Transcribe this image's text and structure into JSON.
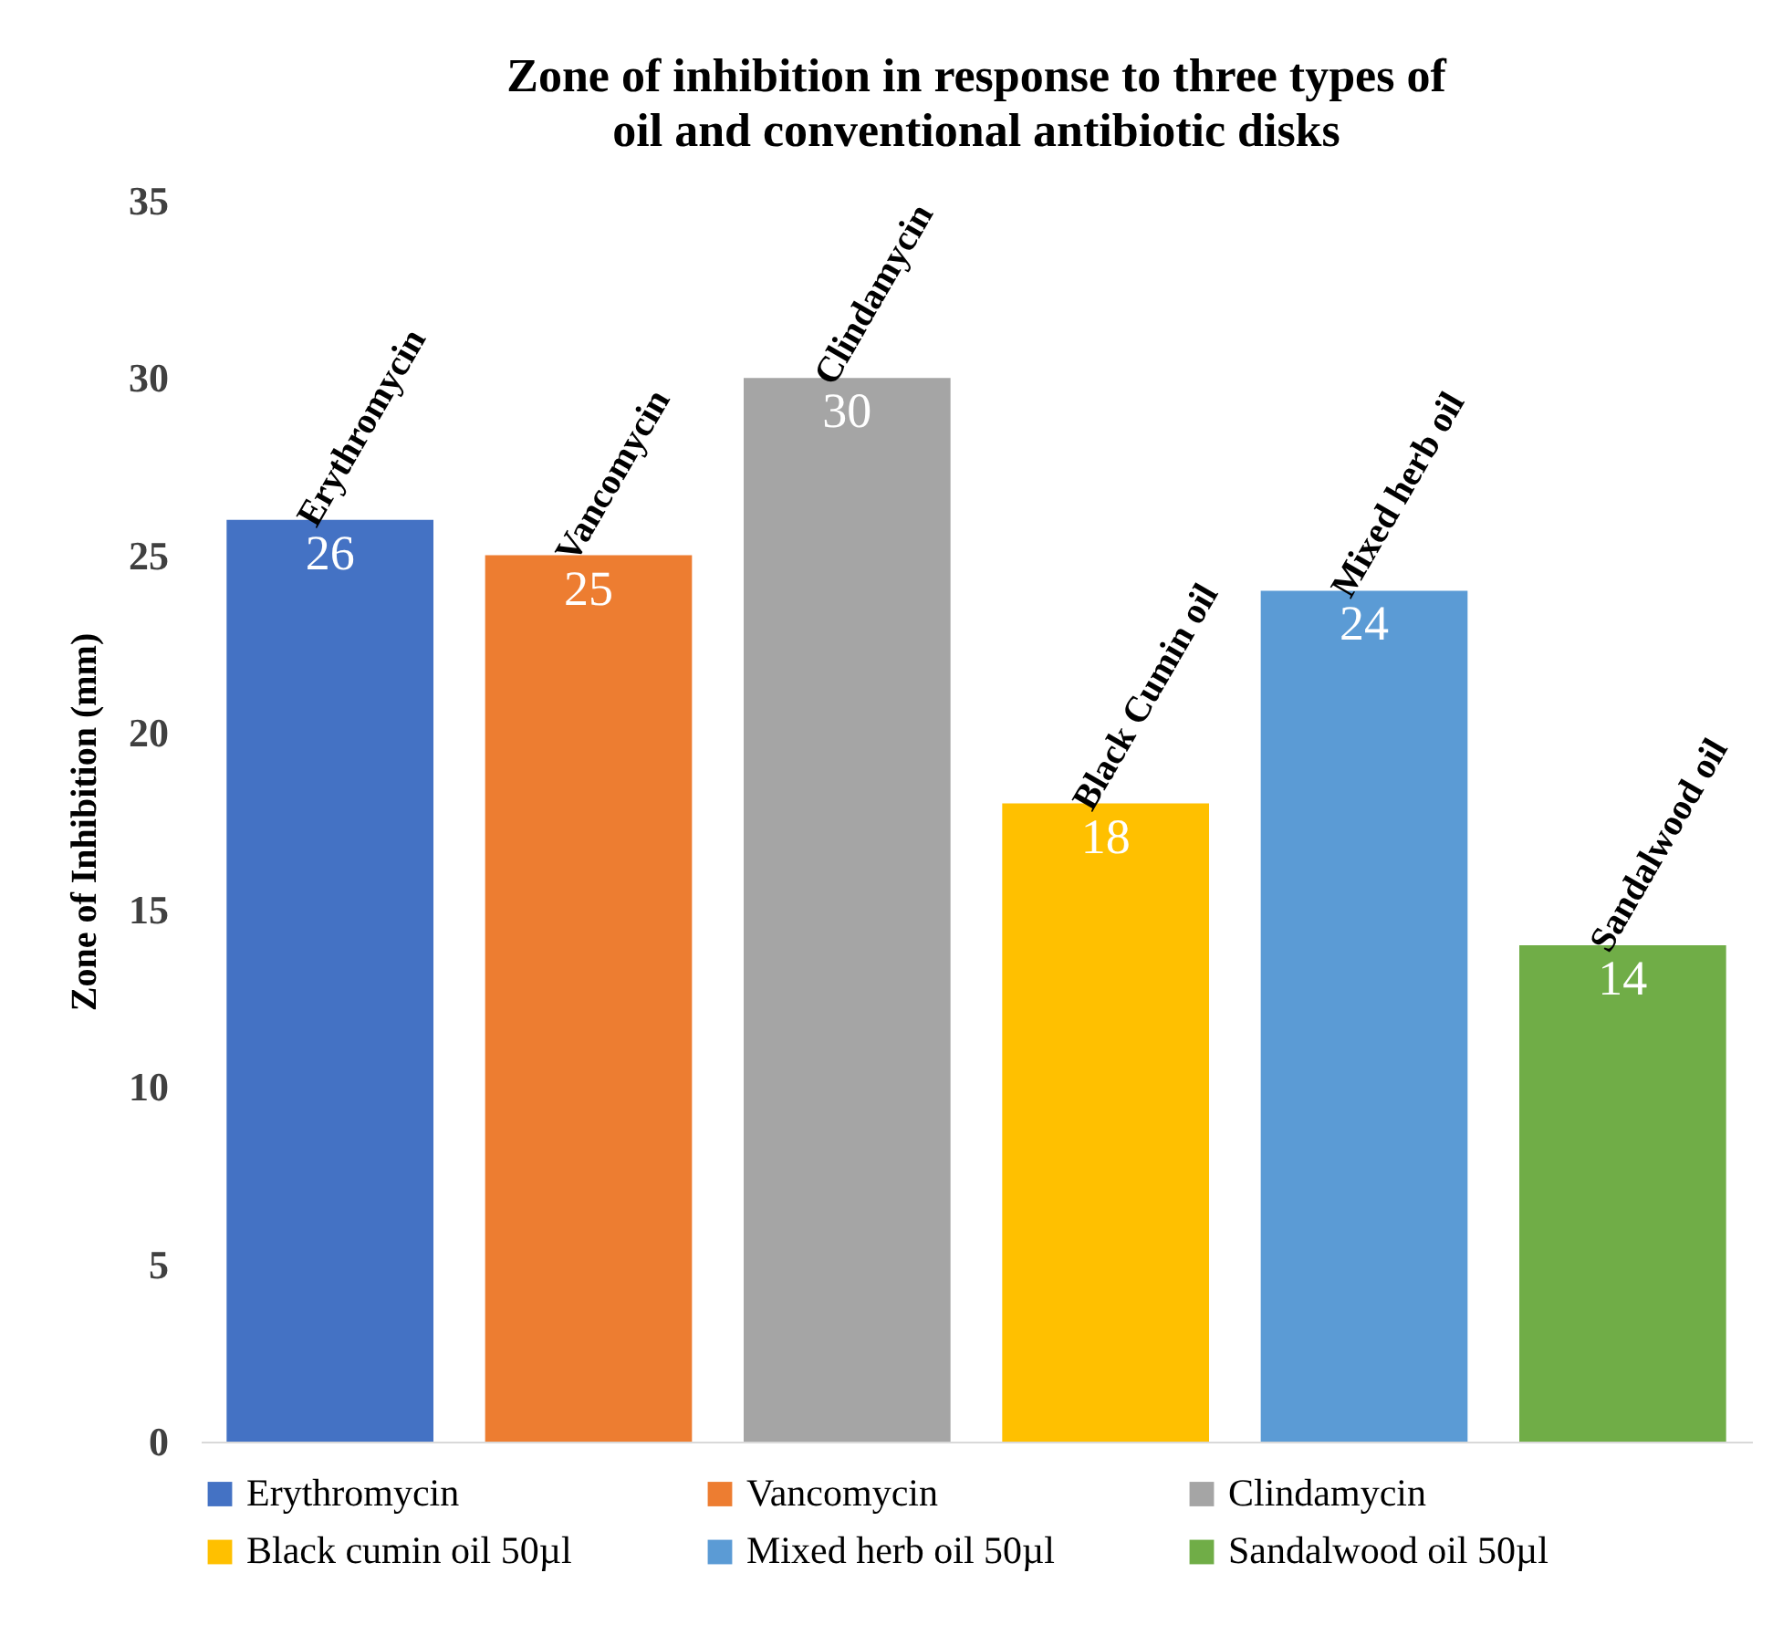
{
  "chart_data": {
    "type": "bar",
    "title": "Zone of inhibition in response to three types of oil and conventional antibiotic disks",
    "ylabel": "Zone of Inhibition (mm)",
    "categories": [
      "Erythromycin",
      "Vancomycin",
      "Clindamycin",
      "Black Cumin oil",
      "Mixed herb oil",
      "Sandalwood oil"
    ],
    "series": [
      {
        "name": "Erythromycin",
        "color": "#4472c4",
        "values": [
          26,
          null,
          null,
          null,
          null,
          null
        ]
      },
      {
        "name": "Vancomycin",
        "color": "#ed7d31",
        "values": [
          null,
          25,
          null,
          null,
          null,
          null
        ]
      },
      {
        "name": "Clindamycin",
        "color": "#a5a5a5",
        "values": [
          null,
          null,
          30,
          null,
          null,
          null
        ]
      },
      {
        "name": "Black cumin oil 50µl",
        "color": "#ffc000",
        "values": [
          null,
          null,
          null,
          18,
          null,
          null
        ]
      },
      {
        "name": "Mixed herb oil 50µl",
        "color": "#5b9bd5",
        "values": [
          null,
          null,
          null,
          null,
          24,
          null
        ]
      },
      {
        "name": "Sandalwood oil 50µl",
        "color": "#70ad47",
        "values": [
          null,
          null,
          null,
          null,
          null,
          14
        ]
      }
    ],
    "ylim": [
      0,
      35
    ],
    "yticks": [
      0,
      5,
      10,
      15,
      20,
      25,
      30,
      35
    ],
    "data_labels": true,
    "legend": "bottom",
    "tick_labels": "y"
  }
}
